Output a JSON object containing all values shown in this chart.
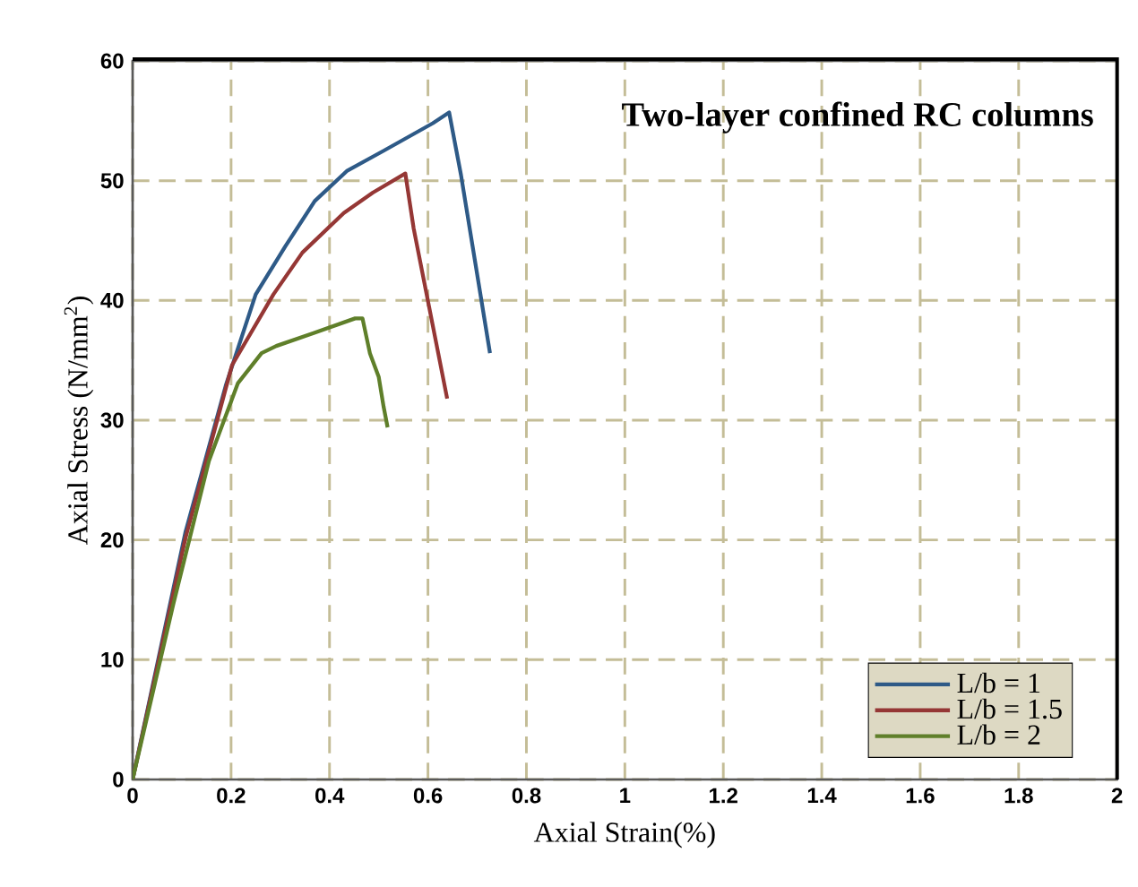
{
  "chart_data": {
    "type": "line",
    "title": "Two-layer confined RC columns",
    "xlabel": "Axial Strain(%)",
    "ylabel": "Axial Stress (N/mm$^{2}$)",
    "xlim": [
      0,
      2
    ],
    "ylim": [
      0,
      60
    ],
    "xticks": [
      0,
      0.2,
      0.4,
      0.6,
      0.8,
      1,
      1.2,
      1.4,
      1.6,
      1.8,
      2
    ],
    "yticks": [
      0,
      10,
      20,
      30,
      40,
      50,
      60
    ],
    "grid": true,
    "legend": "bottom right",
    "series": [
      {
        "name": "L/b = 1",
        "color": "#2e5a87",
        "x": [
          0,
          0.107,
          0.19,
          0.25,
          0.31,
          0.37,
          0.435,
          0.51,
          0.61,
          0.643,
          0.667,
          0.726
        ],
        "values": [
          0,
          20.6,
          33,
          40.5,
          44.5,
          48.3,
          50.8,
          52.5,
          54.8,
          55.7,
          50.5,
          35.6
        ]
      },
      {
        "name": "L/b = 1.5",
        "color": "#953735",
        "x": [
          0,
          0.107,
          0.202,
          0.286,
          0.345,
          0.429,
          0.488,
          0.554,
          0.571,
          0.639
        ],
        "values": [
          0,
          20.1,
          34.6,
          40.5,
          44,
          47.3,
          49,
          50.6,
          46,
          31.8
        ]
      },
      {
        "name": "L/b = 2",
        "color": "#5f7f2a",
        "x": [
          0,
          0.083,
          0.155,
          0.214,
          0.262,
          0.292,
          0.369,
          0.452,
          0.467,
          0.482,
          0.5,
          0.51,
          0.518
        ],
        "values": [
          0,
          14.7,
          26.6,
          33.1,
          35.6,
          36.2,
          37.3,
          38.5,
          38.5,
          35.6,
          33.6,
          31.1,
          29.4
        ]
      }
    ]
  }
}
